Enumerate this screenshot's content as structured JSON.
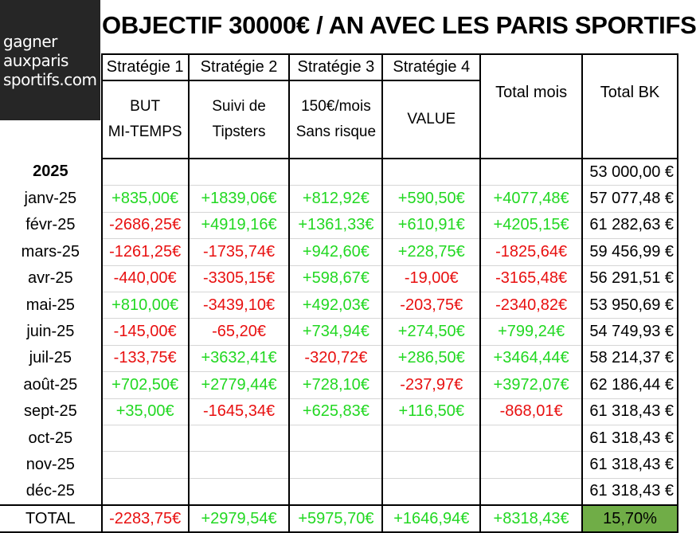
{
  "logo": {
    "line1": "gagner",
    "line2": "auxparis",
    "line3": "sportifs.com"
  },
  "title": "OBJECTIF 30000€ / AN AVEC LES PARIS SPORTIFS",
  "headers": {
    "strategies": [
      {
        "name": "Stratégie 1",
        "line1": "BUT",
        "line2": "MI-TEMPS"
      },
      {
        "name": "Stratégie 2",
        "line1": "Suivi de",
        "line2": "Tipsters"
      },
      {
        "name": "Stratégie 3",
        "line1": "150€/mois",
        "line2": "Sans risque"
      },
      {
        "name": "Stratégie 4",
        "line1": "",
        "line2": "VALUE"
      }
    ],
    "total_month": "Total mois",
    "total_bk": "Total BK"
  },
  "year_row": {
    "label": "2025",
    "bk": "53 000,00 €"
  },
  "rows": [
    {
      "month": "janv-25",
      "s1": "+835,00€",
      "s2": "+1839,06€",
      "s3": "+812,92€",
      "s4": "+590,50€",
      "total": "+4077,48€",
      "bk": "57 077,48 €"
    },
    {
      "month": "févr-25",
      "s1": "-2686,25€",
      "s2": "+4919,16€",
      "s3": "+1361,33€",
      "s4": "+610,91€",
      "total": "+4205,15€",
      "bk": "61 282,63 €"
    },
    {
      "month": "mars-25",
      "s1": "-1261,25€",
      "s2": "-1735,74€",
      "s3": "+942,60€",
      "s4": "+228,75€",
      "total": "-1825,64€",
      "bk": "59 456,99 €"
    },
    {
      "month": "avr-25",
      "s1": "-440,00€",
      "s2": "-3305,15€",
      "s3": "+598,67€",
      "s4": "-19,00€",
      "total": "-3165,48€",
      "bk": "56 291,51 €"
    },
    {
      "month": "mai-25",
      "s1": "+810,00€",
      "s2": "-3439,10€",
      "s3": "+492,03€",
      "s4": "-203,75€",
      "total": "-2340,82€",
      "bk": "53 950,69 €"
    },
    {
      "month": "juin-25",
      "s1": "-145,00€",
      "s2": "-65,20€",
      "s3": "+734,94€",
      "s4": "+274,50€",
      "total": "+799,24€",
      "bk": "54 749,93 €"
    },
    {
      "month": "juil-25",
      "s1": "-133,75€",
      "s2": "+3632,41€",
      "s3": "-320,72€",
      "s4": "+286,50€",
      "total": "+3464,44€",
      "bk": "58 214,37 €"
    },
    {
      "month": "août-25",
      "s1": "+702,50€",
      "s2": "+2779,44€",
      "s3": "+728,10€",
      "s4": "-237,97€",
      "total": "+3972,07€",
      "bk": "62 186,44 €"
    },
    {
      "month": "sept-25",
      "s1": "+35,00€",
      "s2": "-1645,34€",
      "s3": "+625,83€",
      "s4": "+116,50€",
      "total": "-868,01€",
      "bk": "61 318,43 €"
    },
    {
      "month": "oct-25",
      "s1": "",
      "s2": "",
      "s3": "",
      "s4": "",
      "total": "",
      "bk": "61 318,43 €"
    },
    {
      "month": "nov-25",
      "s1": "",
      "s2": "",
      "s3": "",
      "s4": "",
      "total": "",
      "bk": "61 318,43 €"
    },
    {
      "month": "déc-25",
      "s1": "",
      "s2": "",
      "s3": "",
      "s4": "",
      "total": "",
      "bk": "61 318,43 €"
    }
  ],
  "total_row": {
    "label": "TOTAL",
    "s1": "-2283,75€",
    "s2": "+2979,54€",
    "s3": "+5975,70€",
    "s4": "+1646,94€",
    "total": "+8318,43€",
    "pct": "15,70%"
  },
  "colors": {
    "positive": "#22d822",
    "negative": "#e81010",
    "logo_bg": "#262626",
    "total_pct_bg": "#70ad47"
  }
}
